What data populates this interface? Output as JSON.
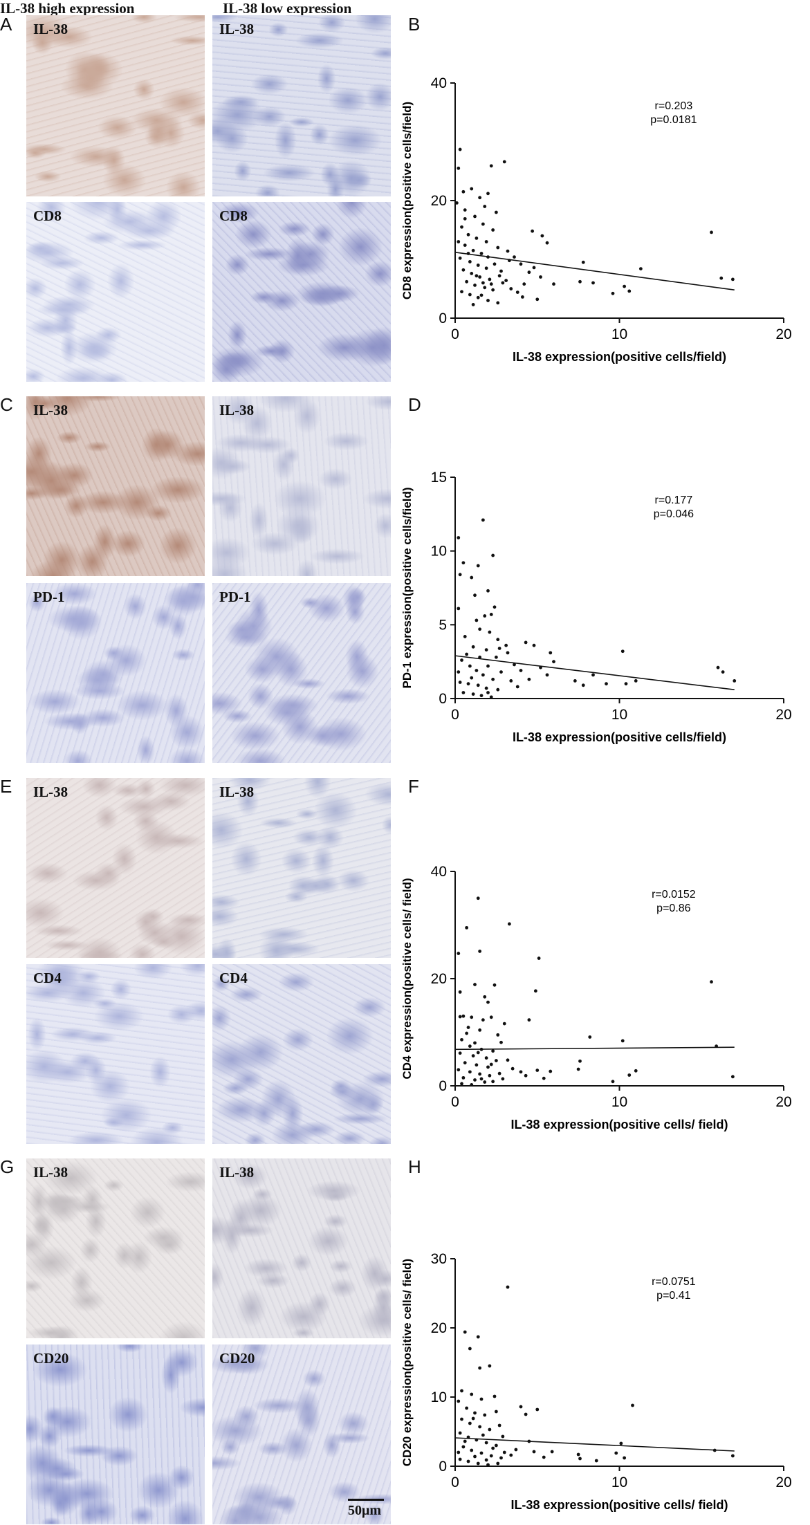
{
  "column_headers": {
    "high": "IL-38 high expression",
    "low": "IL-38 low expression"
  },
  "panel_letters": {
    "A": "A",
    "B": "B",
    "C": "C",
    "D": "D",
    "E": "E",
    "F": "F",
    "G": "G",
    "H": "H"
  },
  "micrographs": {
    "A_high_il38": {
      "label": "IL-38",
      "tone": "#c9a898",
      "base": "#e8dcd8"
    },
    "A_low_il38": {
      "label": "IL-38",
      "tone": "#9aa3cf",
      "base": "#dde0ee"
    },
    "A_high_cd8": {
      "label": "CD8",
      "tone": "#b6bde0",
      "base": "#eceef7"
    },
    "A_low_cd8": {
      "label": "CD8",
      "tone": "#8d92c7",
      "base": "#d8dbee"
    },
    "C_high_il38": {
      "label": "IL-38",
      "tone": "#b48a78",
      "base": "#dcc9c2"
    },
    "C_low_il38": {
      "label": "IL-38",
      "tone": "#b8bcd6",
      "base": "#e4e5ee"
    },
    "C_high_pd1": {
      "label": "PD-1",
      "tone": "#a3a9d6",
      "base": "#e2e4f2"
    },
    "C_low_pd1": {
      "label": "PD-1",
      "tone": "#9ea3d2",
      "base": "#e2e4f1"
    },
    "E_high_il38": {
      "label": "IL-38",
      "tone": "#c8b8b8",
      "base": "#ebe4e3"
    },
    "E_low_il38": {
      "label": "IL-38",
      "tone": "#aeb5d5",
      "base": "#e7e8ef"
    },
    "E_high_cd4": {
      "label": "CD4",
      "tone": "#aeb5dc",
      "base": "#e6e8f4"
    },
    "E_low_cd4": {
      "label": "CD4",
      "tone": "#9ea5d2",
      "base": "#e2e4f1"
    },
    "G_high_il38": {
      "label": "IL-38",
      "tone": "#c4bfc2",
      "base": "#ebe7e7"
    },
    "G_low_il38": {
      "label": "IL-38",
      "tone": "#b9b8c8",
      "base": "#e6e5ea"
    },
    "G_high_cd20": {
      "label": "CD20",
      "tone": "#8f98cf",
      "base": "#dcdff0"
    },
    "G_low_cd20": {
      "label": "CD20",
      "tone": "#a0a6d2",
      "base": "#e3e4f1"
    }
  },
  "scale_bar": {
    "label": "50μm"
  },
  "chart_data": [
    {
      "panel": "B",
      "type": "scatter",
      "xlabel": "IL-38 expression(positive cells/field)",
      "ylabel": "CD8 expression(positive cells/field)",
      "xlim": [
        0,
        20
      ],
      "ylim": [
        0,
        40
      ],
      "xticks": [
        "0",
        "10",
        "20"
      ],
      "yticks": [
        "0",
        "20",
        "40"
      ],
      "stats": [
        "r=0.203",
        "p=0.0181"
      ],
      "regression": {
        "x": [
          0,
          17
        ],
        "y": [
          11.2,
          4.8
        ]
      },
      "points": [
        [
          0.3,
          28.7
        ],
        [
          0.2,
          25.5
        ],
        [
          0.5,
          21.5
        ],
        [
          0.1,
          19.6
        ],
        [
          0.6,
          18.4
        ],
        [
          1.0,
          22.0
        ],
        [
          1.2,
          17.3
        ],
        [
          1.5,
          20.5
        ],
        [
          2.2,
          25.9
        ],
        [
          3.0,
          26.6
        ],
        [
          2.0,
          21.2
        ],
        [
          2.5,
          18.0
        ],
        [
          1.8,
          19.0
        ],
        [
          0.4,
          15.5
        ],
        [
          0.8,
          14.2
        ],
        [
          1.3,
          13.6
        ],
        [
          1.7,
          16.0
        ],
        [
          2.3,
          15.0
        ],
        [
          0.2,
          13.0
        ],
        [
          0.6,
          12.4
        ],
        [
          1.1,
          11.5
        ],
        [
          1.6,
          11.0
        ],
        [
          2.0,
          10.4
        ],
        [
          2.6,
          12.0
        ],
        [
          0.3,
          10.2
        ],
        [
          0.9,
          9.6
        ],
        [
          1.4,
          9.0
        ],
        [
          1.9,
          8.5
        ],
        [
          2.4,
          9.2
        ],
        [
          0.5,
          8.2
        ],
        [
          1.0,
          7.6
        ],
        [
          1.5,
          7.0
        ],
        [
          2.1,
          6.6
        ],
        [
          2.7,
          7.2
        ],
        [
          0.7,
          6.2
        ],
        [
          1.2,
          5.6
        ],
        [
          1.8,
          5.2
        ],
        [
          2.3,
          4.8
        ],
        [
          0.4,
          4.5
        ],
        [
          0.9,
          4.0
        ],
        [
          1.4,
          3.5
        ],
        [
          2.0,
          3.0
        ],
        [
          2.6,
          2.6
        ],
        [
          1.1,
          2.3
        ],
        [
          1.7,
          6.0
        ],
        [
          2.9,
          6.0
        ],
        [
          3.1,
          6.4
        ],
        [
          3.4,
          5.0
        ],
        [
          3.8,
          4.4
        ],
        [
          4.2,
          5.8
        ],
        [
          3.3,
          9.8
        ],
        [
          3.6,
          10.4
        ],
        [
          4.0,
          9.2
        ],
        [
          4.5,
          7.8
        ],
        [
          4.8,
          8.6
        ],
        [
          5.2,
          7.0
        ],
        [
          4.1,
          3.6
        ],
        [
          5.0,
          3.2
        ],
        [
          5.6,
          12.8
        ],
        [
          4.7,
          14.8
        ],
        [
          5.3,
          14.0
        ],
        [
          6.0,
          5.8
        ],
        [
          7.8,
          9.5
        ],
        [
          7.6,
          6.2
        ],
        [
          8.4,
          6.0
        ],
        [
          9.6,
          4.2
        ],
        [
          10.3,
          5.4
        ],
        [
          10.6,
          4.6
        ],
        [
          11.3,
          8.4
        ],
        [
          15.6,
          14.6
        ],
        [
          16.2,
          6.8
        ],
        [
          16.9,
          6.6
        ],
        [
          0.6,
          16.9
        ],
        [
          1.9,
          13.0
        ],
        [
          2.8,
          8.0
        ],
        [
          3.2,
          11.4
        ],
        [
          0.8,
          11.0
        ],
        [
          1.3,
          7.2
        ],
        [
          2.2,
          5.8
        ],
        [
          1.6,
          3.9
        ]
      ]
    },
    {
      "panel": "D",
      "type": "scatter",
      "xlabel": "IL-38 expression(positive cells/field)",
      "ylabel": "PD-1 expression(positive cells/field)",
      "xlim": [
        0,
        20
      ],
      "ylim": [
        0,
        15
      ],
      "xticks": [
        "0",
        "10",
        "20"
      ],
      "yticks": [
        "0",
        "5",
        "10",
        "15"
      ],
      "stats": [
        "r=0.177",
        "p=0.046"
      ],
      "regression": {
        "x": [
          0,
          17
        ],
        "y": [
          2.9,
          0.6
        ]
      },
      "points": [
        [
          0.2,
          10.9
        ],
        [
          0.5,
          9.2
        ],
        [
          0.3,
          8.4
        ],
        [
          1.0,
          8.2
        ],
        [
          1.4,
          9.0
        ],
        [
          1.7,
          12.1
        ],
        [
          2.3,
          9.7
        ],
        [
          2.0,
          7.3
        ],
        [
          1.2,
          7.0
        ],
        [
          2.4,
          6.2
        ],
        [
          1.8,
          5.6
        ],
        [
          2.2,
          5.7
        ],
        [
          0.2,
          6.1
        ],
        [
          1.5,
          4.7
        ],
        [
          2.1,
          4.5
        ],
        [
          2.6,
          4.0
        ],
        [
          3.1,
          3.6
        ],
        [
          0.6,
          4.2
        ],
        [
          1.1,
          3.5
        ],
        [
          1.9,
          3.3
        ],
        [
          2.5,
          2.8
        ],
        [
          0.4,
          2.6
        ],
        [
          0.9,
          2.2
        ],
        [
          1.3,
          1.9
        ],
        [
          1.7,
          1.6
        ],
        [
          2.3,
          1.3
        ],
        [
          0.3,
          1.1
        ],
        [
          0.8,
          1.0
        ],
        [
          1.4,
          0.9
        ],
        [
          1.9,
          0.7
        ],
        [
          2.6,
          0.6
        ],
        [
          0.5,
          0.4
        ],
        [
          1.1,
          0.3
        ],
        [
          1.6,
          0.2
        ],
        [
          2.2,
          0.1
        ],
        [
          3.2,
          3.1
        ],
        [
          3.6,
          2.3
        ],
        [
          4.0,
          1.9
        ],
        [
          4.3,
          3.8
        ],
        [
          4.8,
          3.6
        ],
        [
          5.2,
          2.1
        ],
        [
          5.6,
          1.6
        ],
        [
          5.8,
          3.1
        ],
        [
          6.0,
          2.5
        ],
        [
          7.3,
          1.2
        ],
        [
          7.8,
          0.9
        ],
        [
          8.4,
          1.6
        ],
        [
          9.2,
          1.0
        ],
        [
          10.2,
          3.2
        ],
        [
          10.4,
          1.0
        ],
        [
          11.0,
          1.2
        ],
        [
          16.0,
          2.1
        ],
        [
          16.3,
          1.8
        ],
        [
          17.0,
          1.2
        ],
        [
          2.8,
          1.8
        ],
        [
          3.4,
          1.2
        ],
        [
          1.0,
          1.4
        ],
        [
          1.5,
          2.8
        ],
        [
          2.0,
          2.2
        ],
        [
          0.7,
          3.0
        ],
        [
          2.7,
          3.4
        ],
        [
          3.8,
          0.8
        ],
        [
          4.5,
          1.3
        ],
        [
          0.2,
          1.8
        ],
        [
          1.3,
          5.3
        ],
        [
          2.0,
          0.4
        ]
      ]
    },
    {
      "panel": "F",
      "type": "scatter",
      "xlabel": "IL-38 expression(positive cells/ field)",
      "ylabel": "CD4 expression(positive cells/ field)",
      "xlim": [
        0,
        20
      ],
      "ylim": [
        0,
        40
      ],
      "xticks": [
        "0",
        "10",
        "20"
      ],
      "yticks": [
        "0",
        "20",
        "40"
      ],
      "stats": [
        "r=0.0152",
        "p=0.86"
      ],
      "regression": {
        "x": [
          0,
          17
        ],
        "y": [
          6.8,
          7.2
        ]
      },
      "points": [
        [
          1.4,
          35.0
        ],
        [
          3.3,
          30.2
        ],
        [
          0.7,
          29.5
        ],
        [
          1.5,
          25.1
        ],
        [
          5.1,
          23.8
        ],
        [
          0.2,
          24.7
        ],
        [
          1.2,
          18.9
        ],
        [
          2.4,
          18.8
        ],
        [
          0.3,
          17.5
        ],
        [
          4.9,
          17.7
        ],
        [
          1.8,
          16.6
        ],
        [
          2.0,
          15.6
        ],
        [
          0.5,
          13.0
        ],
        [
          1.0,
          12.8
        ],
        [
          2.2,
          12.8
        ],
        [
          4.5,
          12.3
        ],
        [
          0.8,
          10.9
        ],
        [
          3.0,
          11.6
        ],
        [
          1.5,
          10.4
        ],
        [
          2.6,
          9.5
        ],
        [
          0.4,
          8.6
        ],
        [
          1.2,
          8.0
        ],
        [
          2.8,
          8.1
        ],
        [
          0.9,
          7.4
        ],
        [
          1.6,
          6.8
        ],
        [
          2.3,
          6.5
        ],
        [
          0.3,
          6.1
        ],
        [
          1.1,
          5.6
        ],
        [
          1.9,
          5.2
        ],
        [
          2.5,
          4.7
        ],
        [
          0.6,
          4.3
        ],
        [
          1.3,
          3.9
        ],
        [
          2.0,
          3.5
        ],
        [
          0.2,
          3.0
        ],
        [
          0.9,
          2.6
        ],
        [
          1.5,
          2.2
        ],
        [
          2.1,
          1.9
        ],
        [
          0.5,
          1.5
        ],
        [
          1.2,
          1.1
        ],
        [
          1.8,
          0.7
        ],
        [
          0.4,
          0.4
        ],
        [
          1.0,
          0.2
        ],
        [
          3.5,
          3.2
        ],
        [
          4.0,
          2.6
        ],
        [
          4.3,
          1.9
        ],
        [
          5.0,
          2.9
        ],
        [
          5.4,
          1.4
        ],
        [
          5.8,
          2.7
        ],
        [
          7.5,
          3.1
        ],
        [
          7.6,
          4.6
        ],
        [
          8.2,
          9.1
        ],
        [
          9.6,
          0.8
        ],
        [
          10.2,
          8.4
        ],
        [
          10.6,
          2.0
        ],
        [
          11.0,
          2.8
        ],
        [
          15.6,
          19.4
        ],
        [
          15.9,
          7.4
        ],
        [
          16.9,
          1.7
        ],
        [
          2.7,
          2.3
        ],
        [
          3.2,
          4.8
        ],
        [
          1.6,
          1.3
        ],
        [
          2.3,
          0.8
        ],
        [
          0.7,
          9.8
        ],
        [
          1.7,
          12.3
        ],
        [
          2.9,
          1.3
        ],
        [
          0.3,
          12.9
        ],
        [
          1.4,
          6.2
        ],
        [
          2.2,
          4.0
        ]
      ]
    },
    {
      "panel": "H",
      "type": "scatter",
      "xlabel": "IL-38 expression(positive cells/ field)",
      "ylabel": "CD20 expression(positive cells/ field)",
      "xlim": [
        0,
        20
      ],
      "ylim": [
        0,
        30
      ],
      "xticks": [
        "0",
        "10",
        "20"
      ],
      "yticks": [
        "0",
        "10",
        "20",
        "30"
      ],
      "stats": [
        "r=0.0751",
        "p=0.41"
      ],
      "regression": {
        "x": [
          0,
          17
        ],
        "y": [
          4.1,
          2.2
        ]
      },
      "points": [
        [
          3.2,
          25.9
        ],
        [
          0.6,
          19.4
        ],
        [
          1.4,
          18.7
        ],
        [
          0.9,
          17.0
        ],
        [
          1.5,
          14.2
        ],
        [
          2.1,
          14.5
        ],
        [
          0.4,
          10.9
        ],
        [
          1.0,
          10.4
        ],
        [
          1.6,
          9.7
        ],
        [
          2.4,
          10.1
        ],
        [
          0.2,
          9.4
        ],
        [
          0.7,
          8.4
        ],
        [
          1.2,
          7.7
        ],
        [
          1.8,
          7.4
        ],
        [
          2.5,
          7.9
        ],
        [
          0.4,
          6.8
        ],
        [
          0.9,
          6.2
        ],
        [
          1.5,
          5.7
        ],
        [
          2.1,
          5.3
        ],
        [
          2.7,
          5.9
        ],
        [
          0.3,
          4.8
        ],
        [
          0.8,
          4.2
        ],
        [
          1.3,
          3.8
        ],
        [
          1.9,
          3.4
        ],
        [
          2.5,
          3.0
        ],
        [
          0.5,
          2.8
        ],
        [
          1.0,
          2.3
        ],
        [
          1.6,
          1.9
        ],
        [
          2.2,
          1.5
        ],
        [
          2.8,
          1.2
        ],
        [
          0.3,
          1.0
        ],
        [
          0.8,
          0.7
        ],
        [
          1.4,
          0.4
        ],
        [
          2.0,
          0.2
        ],
        [
          2.6,
          0.4
        ],
        [
          3.0,
          2.0
        ],
        [
          3.4,
          1.6
        ],
        [
          3.7,
          2.4
        ],
        [
          4.0,
          8.6
        ],
        [
          4.3,
          7.5
        ],
        [
          4.5,
          3.6
        ],
        [
          4.8,
          2.1
        ],
        [
          5.0,
          8.2
        ],
        [
          5.4,
          1.3
        ],
        [
          5.9,
          2.1
        ],
        [
          7.5,
          1.7
        ],
        [
          7.6,
          1.1
        ],
        [
          8.6,
          0.8
        ],
        [
          9.8,
          1.9
        ],
        [
          10.1,
          3.3
        ],
        [
          10.3,
          1.2
        ],
        [
          10.8,
          8.8
        ],
        [
          15.8,
          2.3
        ],
        [
          16.9,
          1.5
        ],
        [
          1.1,
          6.9
        ],
        [
          1.7,
          4.5
        ],
        [
          2.3,
          2.6
        ],
        [
          0.6,
          3.6
        ],
        [
          1.9,
          0.9
        ],
        [
          2.9,
          4.3
        ],
        [
          0.2,
          2.0
        ],
        [
          1.2,
          1.4
        ]
      ]
    }
  ]
}
